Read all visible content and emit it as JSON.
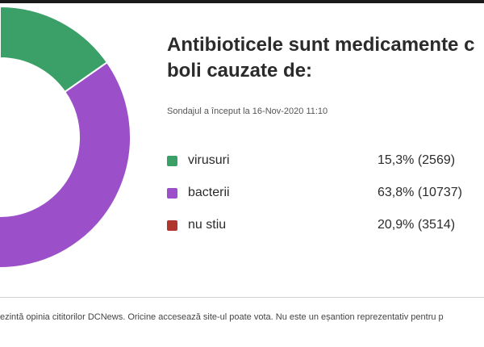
{
  "chart_data": {
    "type": "pie",
    "title": "Antibioticele sunt medicamente c\nboli cauzate de:",
    "subtitle": "Sondajul a început la 16-Nov-2020 11:10",
    "series": [
      {
        "name": "virusuri",
        "percent": 15.3,
        "count": 2569,
        "display": "15,3% (2569)",
        "color": "#3aa067"
      },
      {
        "name": "bacterii",
        "percent": 63.8,
        "count": 10737,
        "display": "63,8% (10737)",
        "color": "#9b4fc8"
      },
      {
        "name": "nu stiu",
        "percent": 20.9,
        "count": 3514,
        "display": "20,9% (3514)",
        "color": "#b0352c"
      }
    ],
    "legend_placement": "right"
  },
  "footer": {
    "text": "ezintă opinia cititorilor DCNews. Oricine accesează site-ul poate vota. Nu este un eșantion reprezentativ pentru p"
  }
}
